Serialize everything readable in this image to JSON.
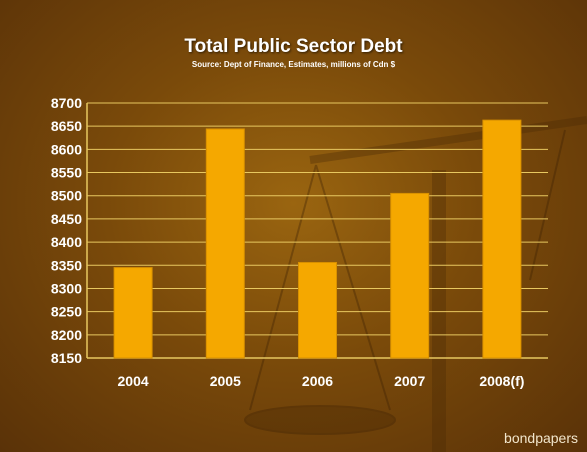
{
  "chart_data": {
    "type": "bar",
    "title": "Total Public Sector Debt",
    "subtitle": "Source: Dept of Finance, Estimates, millions of Cdn $",
    "categories": [
      "2004",
      "2005",
      "2006",
      "2007",
      "2008(f)"
    ],
    "values": [
      8345,
      8644,
      8356,
      8505,
      8663
    ],
    "ylim": [
      8150,
      8700
    ],
    "yticks": [
      "8150",
      "8200",
      "8250",
      "8300",
      "8350",
      "8400",
      "8450",
      "8500",
      "8550",
      "8600",
      "8650",
      "8700"
    ],
    "xlabel": "",
    "ylabel": "",
    "grid": true,
    "legend": "none",
    "colors": {
      "bar": "#f5a800",
      "grid": "#e8c860",
      "axis_text": "#ffffff",
      "background": "#7a4a0a"
    }
  },
  "watermark": "bondpapers"
}
